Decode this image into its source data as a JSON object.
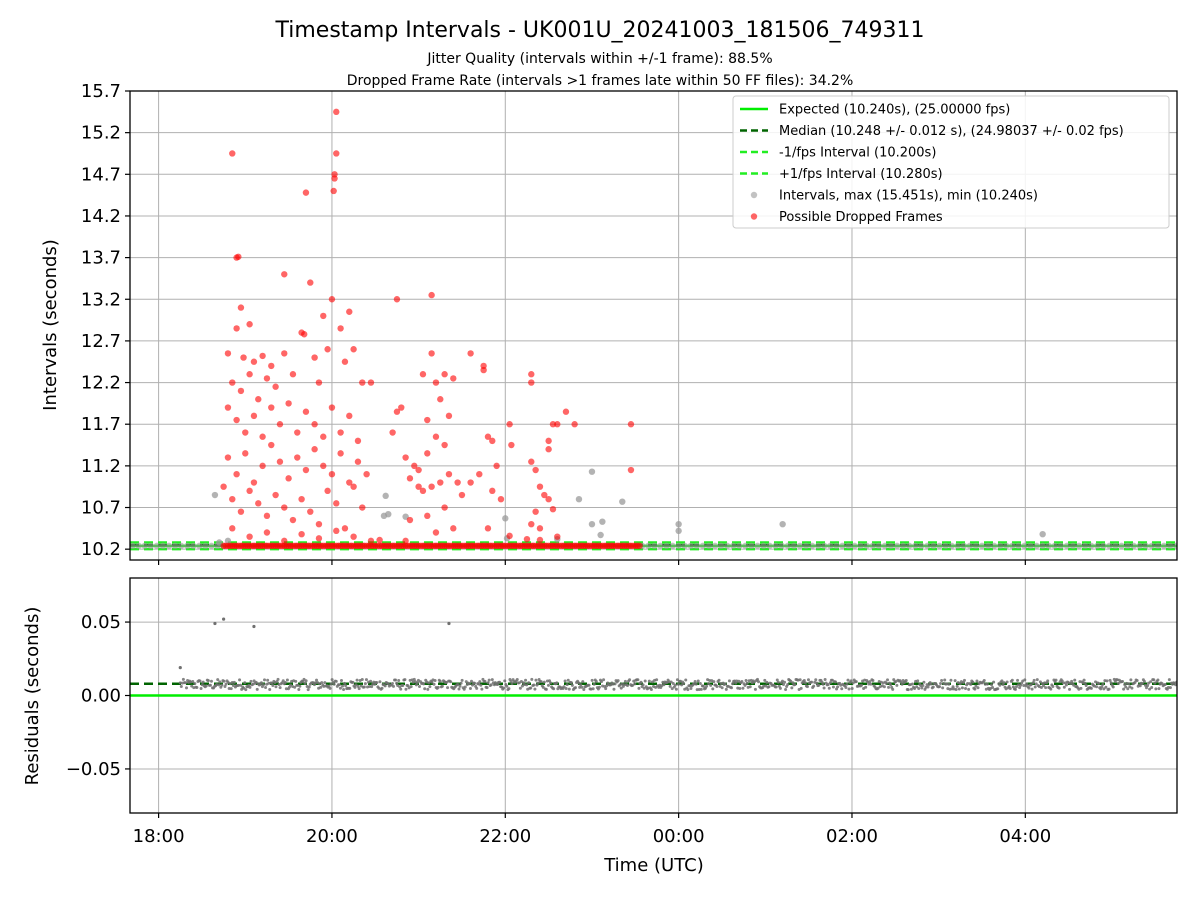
{
  "chart_data": [
    {
      "type": "scatter",
      "title": "Timestamp Intervals - UK001U_20241003_181506_749311",
      "subtitle_lines": [
        "Jitter Quality (intervals within +/-1 frame): 88.5%",
        "Dropped Frame Rate (intervals >1 frames late within 50 FF files): 34.2%"
      ],
      "xlabel": "",
      "ylabel": "Intervals (seconds)",
      "x_unit": "hours since 00:00 UTC of first day",
      "xlim": [
        17.67,
        29.75
      ],
      "ylim": [
        10.07,
        15.7
      ],
      "yticks": [
        10.2,
        10.7,
        11.2,
        11.7,
        12.2,
        12.7,
        13.2,
        13.7,
        14.2,
        14.7,
        15.2,
        15.7
      ],
      "xticks": [
        18,
        20,
        22,
        24,
        26,
        28
      ],
      "xtick_labels": [
        "18:00",
        "20:00",
        "22:00",
        "00:00",
        "02:00",
        "04:00"
      ],
      "grid": true,
      "legend_position": "top-right",
      "colors": {
        "expected": "#00ee00",
        "median": "#006400",
        "bounds": "#22ee22",
        "intervals": "#9a9a9a",
        "dropped": "#ff0000"
      },
      "lines": [
        {
          "name": "Expected (10.240s), (25.00000 fps)",
          "y": 10.24,
          "style": "solid",
          "color": "#00ee00"
        },
        {
          "name": "Median (10.248 +/- 0.012 s), (24.98037 +/- 0.02 fps)",
          "y": 10.248,
          "style": "dashed",
          "color": "#006400"
        },
        {
          "name": "-1/fps Interval (10.200s)",
          "y": 10.2,
          "style": "dashed",
          "color": "#22ee22"
        },
        {
          "name": "+1/fps Interval (10.280s)",
          "y": 10.28,
          "style": "dashed",
          "color": "#22ee22"
        }
      ],
      "series": [
        {
          "name": "Intervals, max (15.451s), min (10.240s)",
          "color": "#9a9a9a",
          "baseline_y": 10.24,
          "baseline_x_range": [
            17.7,
            29.75
          ],
          "points": [
            [
              18.65,
              10.85
            ],
            [
              18.7,
              10.28
            ],
            [
              18.8,
              10.3
            ],
            [
              20.6,
              10.6
            ],
            [
              20.62,
              10.84
            ],
            [
              20.65,
              10.62
            ],
            [
              20.85,
              10.59
            ],
            [
              22.0,
              10.57
            ],
            [
              22.02,
              10.33
            ],
            [
              22.6,
              10.32
            ],
            [
              23.0,
              10.5
            ],
            [
              23.1,
              10.37
            ],
            [
              23.12,
              10.53
            ],
            [
              23.35,
              10.77
            ],
            [
              23.0,
              11.13
            ],
            [
              22.85,
              10.8
            ],
            [
              24.0,
              10.5
            ],
            [
              24.0,
              10.42
            ],
            [
              25.2,
              10.5
            ],
            [
              28.2,
              10.38
            ]
          ]
        },
        {
          "name": "Possible Dropped Frames",
          "color": "#ff0000",
          "baseline_y": 10.24,
          "baseline_x_range": [
            18.75,
            23.55
          ],
          "points": [
            [
              18.85,
              14.95
            ],
            [
              18.9,
              13.7
            ],
            [
              18.92,
              13.71
            ],
            [
              18.95,
              13.1
            ],
            [
              18.9,
              12.85
            ],
            [
              19.05,
              12.9
            ],
            [
              18.8,
              12.55
            ],
            [
              18.98,
              12.5
            ],
            [
              19.1,
              12.45
            ],
            [
              19.2,
              12.52
            ],
            [
              19.3,
              12.4
            ],
            [
              18.85,
              12.2
            ],
            [
              18.95,
              12.1
            ],
            [
              19.05,
              12.3
            ],
            [
              19.15,
              12.0
            ],
            [
              19.25,
              12.25
            ],
            [
              19.35,
              12.15
            ],
            [
              19.45,
              12.55
            ],
            [
              19.55,
              12.3
            ],
            [
              19.65,
              12.8
            ],
            [
              19.68,
              12.78
            ],
            [
              19.75,
              13.4
            ],
            [
              19.8,
              12.5
            ],
            [
              19.85,
              12.2
            ],
            [
              19.9,
              13.0
            ],
            [
              19.95,
              12.6
            ],
            [
              20.0,
              13.2
            ],
            [
              20.05,
              14.95
            ],
            [
              20.03,
              14.7
            ],
            [
              20.03,
              14.65
            ],
            [
              20.02,
              14.5
            ],
            [
              20.05,
              15.45
            ],
            [
              20.1,
              12.85
            ],
            [
              20.15,
              12.45
            ],
            [
              20.2,
              13.05
            ],
            [
              20.25,
              12.6
            ],
            [
              20.35,
              12.2
            ],
            [
              20.45,
              12.2
            ],
            [
              19.45,
              13.5
            ],
            [
              19.7,
              14.48
            ],
            [
              18.8,
              11.9
            ],
            [
              18.9,
              11.75
            ],
            [
              19.0,
              11.6
            ],
            [
              19.1,
              11.8
            ],
            [
              19.2,
              11.55
            ],
            [
              19.3,
              11.9
            ],
            [
              19.4,
              11.7
            ],
            [
              19.5,
              11.95
            ],
            [
              19.6,
              11.6
            ],
            [
              19.7,
              11.85
            ],
            [
              19.8,
              11.7
            ],
            [
              19.9,
              11.55
            ],
            [
              20.0,
              11.9
            ],
            [
              20.1,
              11.6
            ],
            [
              20.2,
              11.8
            ],
            [
              20.3,
              11.5
            ],
            [
              18.8,
              11.3
            ],
            [
              18.9,
              11.1
            ],
            [
              19.0,
              11.35
            ],
            [
              19.1,
              11.0
            ],
            [
              19.2,
              11.2
            ],
            [
              19.3,
              11.45
            ],
            [
              19.4,
              11.25
            ],
            [
              19.5,
              11.05
            ],
            [
              19.6,
              11.3
            ],
            [
              19.7,
              11.15
            ],
            [
              19.8,
              11.4
            ],
            [
              19.9,
              11.2
            ],
            [
              20.0,
              11.1
            ],
            [
              20.1,
              11.35
            ],
            [
              20.2,
              11.0
            ],
            [
              20.3,
              11.25
            ],
            [
              20.4,
              11.1
            ],
            [
              18.75,
              10.95
            ],
            [
              18.85,
              10.8
            ],
            [
              18.95,
              10.65
            ],
            [
              19.05,
              10.9
            ],
            [
              19.15,
              10.75
            ],
            [
              19.25,
              10.6
            ],
            [
              19.35,
              10.85
            ],
            [
              19.45,
              10.7
            ],
            [
              19.55,
              10.55
            ],
            [
              19.65,
              10.8
            ],
            [
              19.75,
              10.65
            ],
            [
              19.85,
              10.5
            ],
            [
              19.95,
              10.9
            ],
            [
              20.05,
              10.75
            ],
            [
              20.15,
              10.45
            ],
            [
              20.25,
              10.95
            ],
            [
              20.35,
              10.7
            ],
            [
              18.85,
              10.45
            ],
            [
              19.05,
              10.35
            ],
            [
              19.25,
              10.4
            ],
            [
              19.45,
              10.3
            ],
            [
              19.65,
              10.38
            ],
            [
              19.85,
              10.33
            ],
            [
              20.05,
              10.42
            ],
            [
              20.25,
              10.35
            ],
            [
              20.45,
              10.3
            ],
            [
              20.55,
              10.31
            ],
            [
              20.75,
              13.2
            ],
            [
              20.75,
              11.85
            ],
            [
              20.8,
              11.9
            ],
            [
              20.7,
              11.6
            ],
            [
              20.85,
              11.3
            ],
            [
              20.9,
              11.05
            ],
            [
              20.95,
              11.2
            ],
            [
              21.0,
              10.95
            ],
            [
              21.05,
              12.3
            ],
            [
              21.1,
              11.75
            ],
            [
              21.15,
              12.55
            ],
            [
              21.15,
              13.25
            ],
            [
              21.2,
              12.2
            ],
            [
              21.25,
              12.0
            ],
            [
              21.3,
              12.3
            ],
            [
              21.35,
              11.8
            ],
            [
              21.4,
              12.25
            ],
            [
              21.3,
              11.45
            ],
            [
              21.2,
              11.55
            ],
            [
              21.1,
              11.35
            ],
            [
              21.0,
              11.15
            ],
            [
              21.05,
              10.9
            ],
            [
              21.15,
              10.95
            ],
            [
              21.25,
              11.0
            ],
            [
              21.35,
              11.1
            ],
            [
              21.45,
              11.0
            ],
            [
              21.5,
              10.85
            ],
            [
              21.3,
              10.7
            ],
            [
              21.1,
              10.6
            ],
            [
              20.9,
              10.55
            ],
            [
              21.2,
              10.4
            ],
            [
              21.4,
              10.45
            ],
            [
              20.85,
              10.3
            ],
            [
              21.6,
              12.55
            ],
            [
              21.75,
              12.35
            ],
            [
              21.75,
              12.4
            ],
            [
              21.8,
              11.55
            ],
            [
              21.85,
              11.5
            ],
            [
              21.9,
              11.2
            ],
            [
              21.7,
              11.1
            ],
            [
              21.6,
              11.0
            ],
            [
              21.85,
              10.9
            ],
            [
              21.95,
              10.8
            ],
            [
              21.8,
              10.45
            ],
            [
              22.05,
              11.7
            ],
            [
              22.07,
              11.45
            ],
            [
              22.3,
              12.3
            ],
            [
              22.3,
              12.2
            ],
            [
              22.3,
              11.25
            ],
            [
              22.35,
              11.15
            ],
            [
              22.4,
              10.95
            ],
            [
              22.45,
              10.85
            ],
            [
              22.35,
              10.65
            ],
            [
              22.4,
              10.45
            ],
            [
              22.5,
              10.8
            ],
            [
              22.5,
              11.4
            ],
            [
              22.5,
              11.5
            ],
            [
              22.55,
              11.7
            ],
            [
              22.6,
              11.7
            ],
            [
              22.7,
              11.85
            ],
            [
              22.8,
              11.7
            ],
            [
              23.45,
              11.7
            ],
            [
              23.45,
              11.15
            ],
            [
              22.05,
              10.36
            ],
            [
              22.25,
              10.32
            ],
            [
              22.4,
              10.31
            ],
            [
              22.6,
              10.35
            ],
            [
              22.55,
              10.68
            ],
            [
              22.3,
              10.5
            ]
          ]
        }
      ]
    },
    {
      "type": "scatter",
      "title": "",
      "xlabel": "Time (UTC)",
      "ylabel": "Residuals (seconds)",
      "x_unit": "hours since 00:00 UTC of first day",
      "xlim": [
        17.67,
        29.75
      ],
      "ylim": [
        -0.08,
        0.08
      ],
      "yticks": [
        0.05,
        0.0,
        -0.05
      ],
      "ytick_labels": [
        "0.05",
        "0.00",
        "−0.05"
      ],
      "xticks": [
        18,
        20,
        22,
        24,
        26,
        28
      ],
      "xtick_labels": [
        "18:00",
        "20:00",
        "22:00",
        "00:00",
        "02:00",
        "04:00"
      ],
      "grid": true,
      "lines": [
        {
          "name": "expected",
          "y": 0.0,
          "style": "solid",
          "color": "#00ee00"
        },
        {
          "name": "median",
          "y": 0.008,
          "style": "dashed",
          "color": "#006400"
        }
      ],
      "series": [
        {
          "name": "residuals",
          "color": "#707070",
          "band_y": [
            0.004,
            0.011
          ],
          "band_x_range": [
            18.25,
            29.75
          ],
          "points": [
            [
              18.25,
              0.019
            ],
            [
              18.65,
              0.049
            ],
            [
              18.75,
              0.052
            ],
            [
              19.1,
              0.047
            ],
            [
              21.35,
              0.049
            ]
          ]
        }
      ]
    }
  ]
}
